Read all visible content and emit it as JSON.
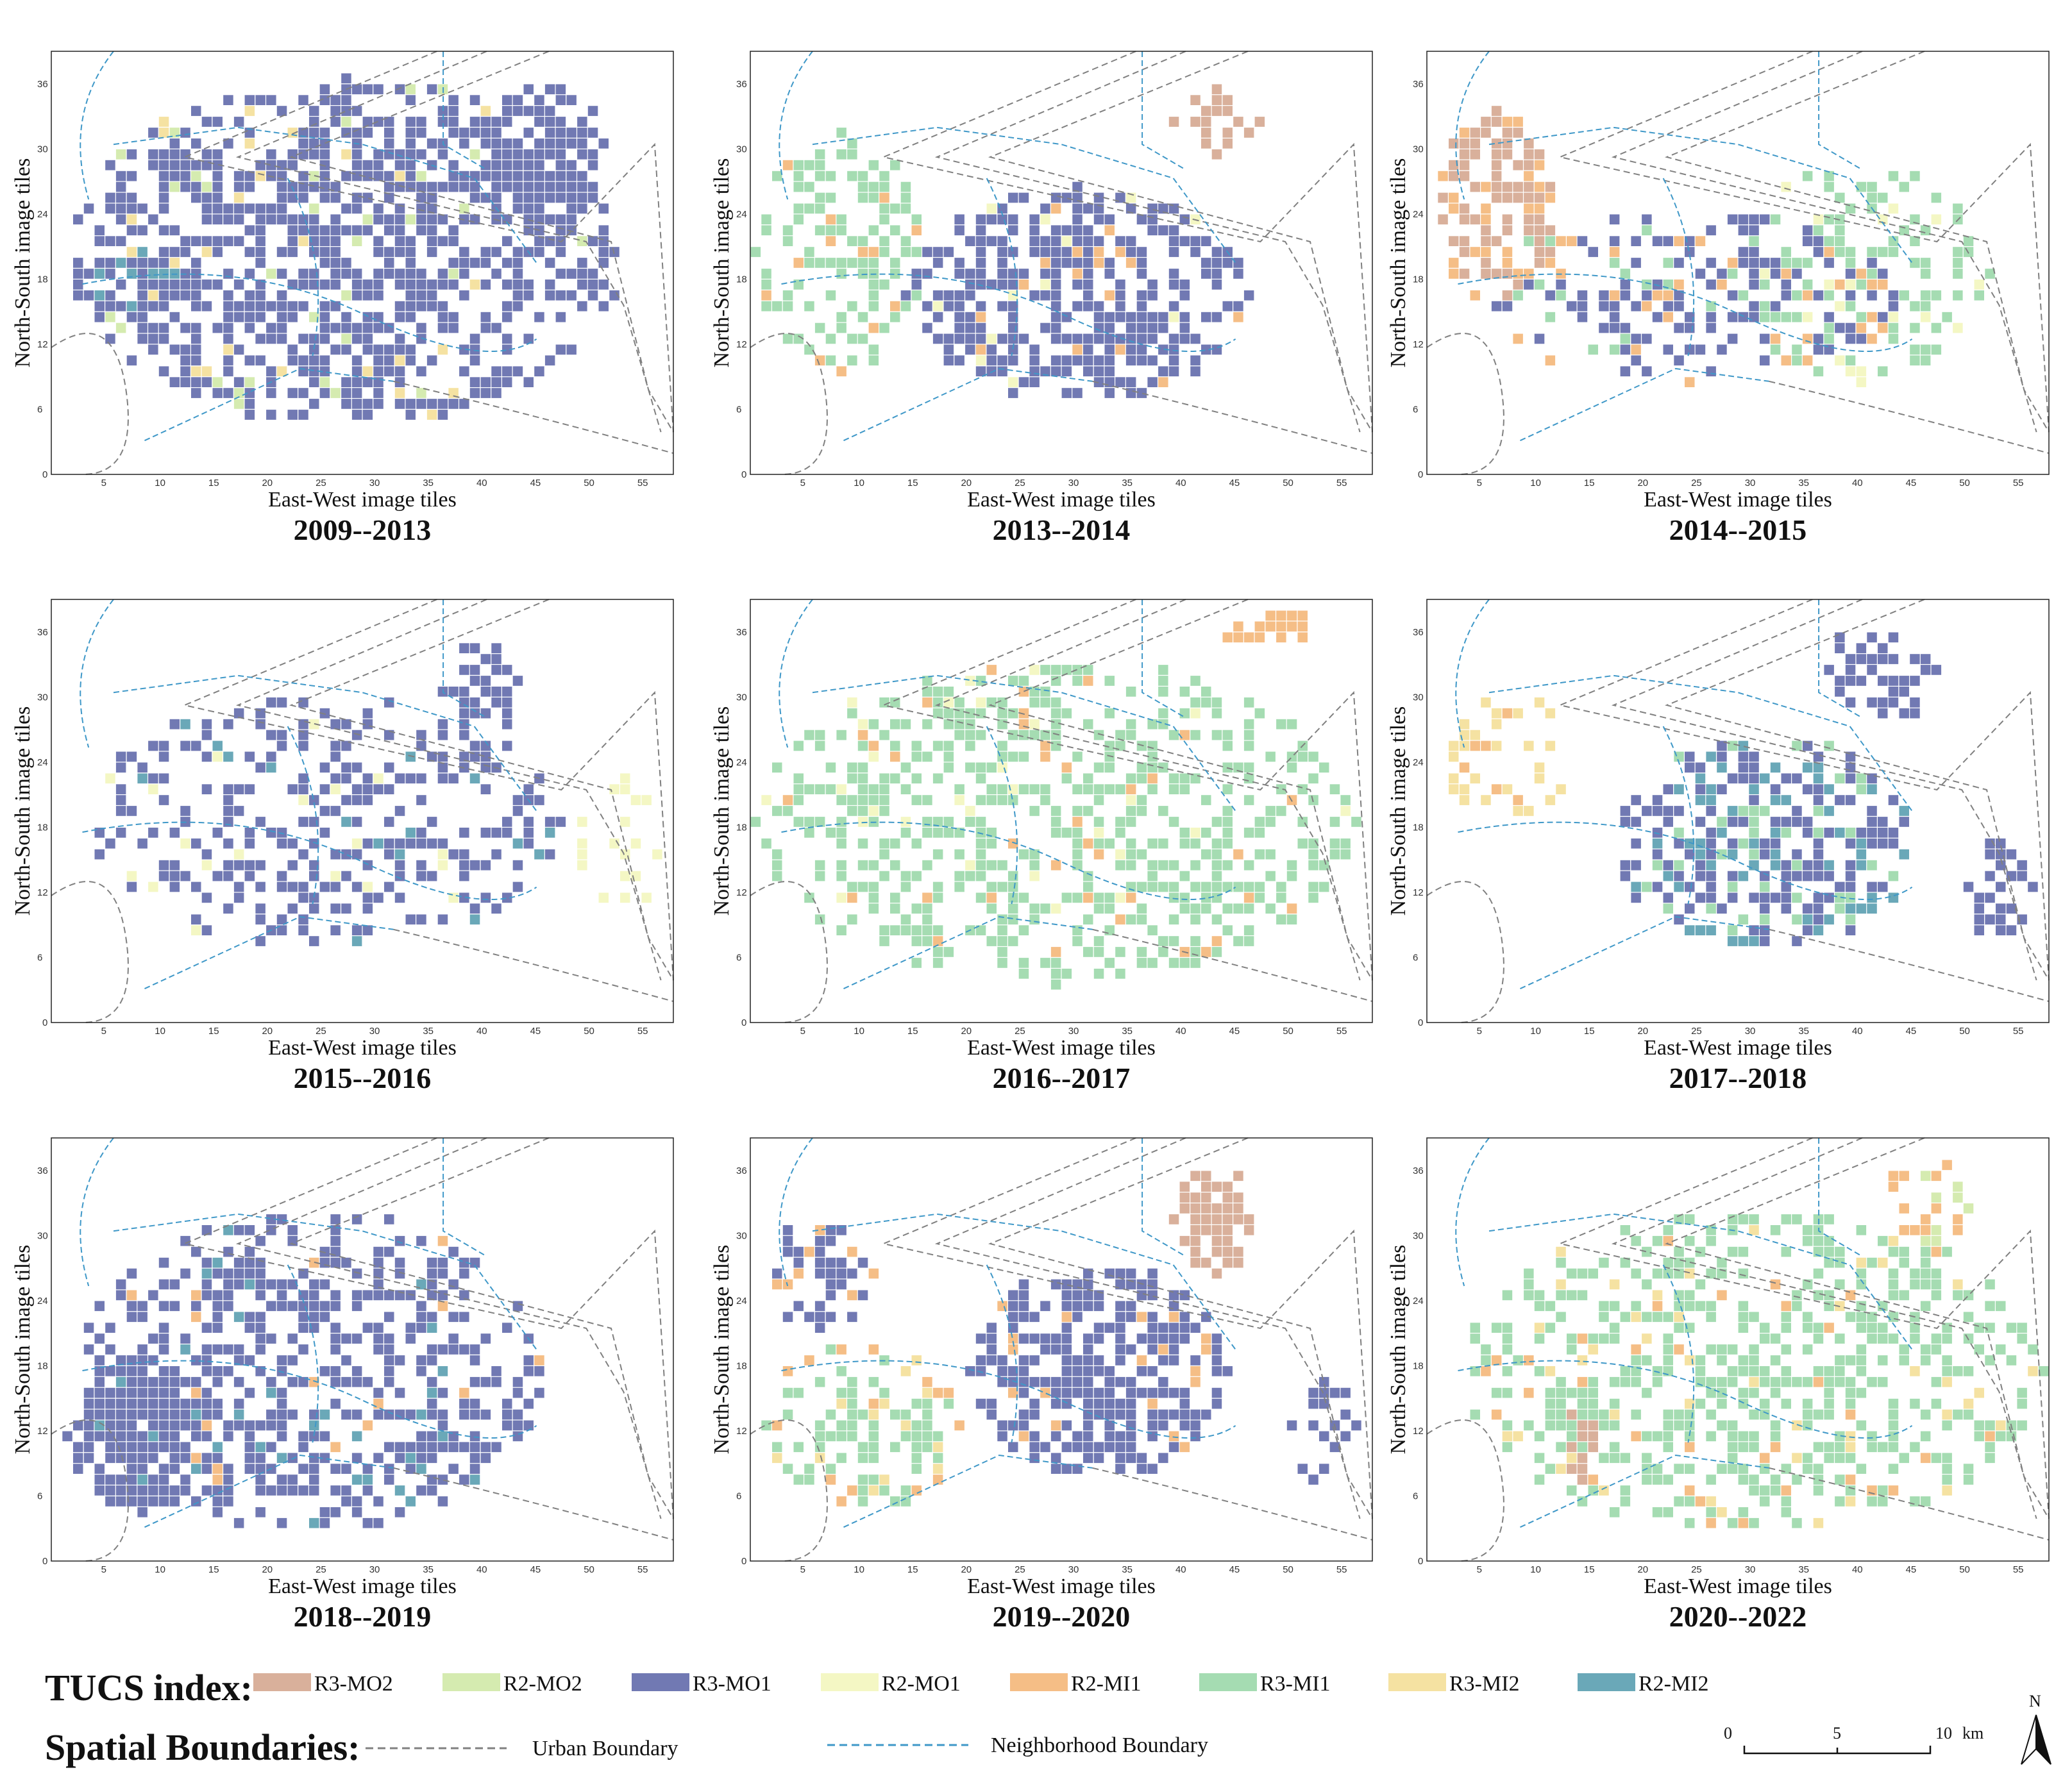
{
  "figure": {
    "xlabel": "East-West image tiles",
    "ylabel": "North-South image tiles",
    "x_ticks": [
      "5",
      "10",
      "15",
      "20",
      "25",
      "30",
      "35",
      "40",
      "45",
      "50",
      "55"
    ],
    "y_ticks": [
      "6",
      "12",
      "18",
      "24",
      "30",
      "36"
    ],
    "origin_label": "0"
  },
  "chart_data": [
    {
      "type": "heatmap",
      "title": "2009--2013",
      "xlabel": "East-West image tiles",
      "ylabel": "North-South image tiles",
      "xlim": [
        0,
        58
      ],
      "ylim": [
        0,
        39
      ],
      "dominant_classes": [
        "R3-MO1",
        "R2-MI2",
        "R3-MI2",
        "R2-MO2"
      ]
    },
    {
      "type": "heatmap",
      "title": "2013--2014",
      "xlabel": "East-West image tiles",
      "ylabel": "North-South image tiles",
      "xlim": [
        0,
        58
      ],
      "ylim": [
        0,
        39
      ],
      "dominant_classes": [
        "R3-MO1",
        "R3-MI1",
        "R3-MO2",
        "R2-MI1"
      ]
    },
    {
      "type": "heatmap",
      "title": "2014--2015",
      "xlabel": "East-West image tiles",
      "ylabel": "North-South image tiles",
      "xlim": [
        0,
        58
      ],
      "ylim": [
        0,
        39
      ],
      "dominant_classes": [
        "R3-MO2",
        "R3-MO1",
        "R3-MI1",
        "R2-MI1",
        "R2-MO1"
      ]
    },
    {
      "type": "heatmap",
      "title": "2015--2016",
      "xlabel": "East-West image tiles",
      "ylabel": "North-South image tiles",
      "xlim": [
        0,
        58
      ],
      "ylim": [
        0,
        39
      ],
      "dominant_classes": [
        "R3-MO1",
        "R2-MO1",
        "R2-MI2"
      ]
    },
    {
      "type": "heatmap",
      "title": "2016--2017",
      "xlabel": "East-West image tiles",
      "ylabel": "North-South image tiles",
      "xlim": [
        0,
        58
      ],
      "ylim": [
        0,
        39
      ],
      "dominant_classes": [
        "R3-MI1",
        "R2-MI1",
        "R2-MO1"
      ]
    },
    {
      "type": "heatmap",
      "title": "2017--2018",
      "xlabel": "East-West image tiles",
      "ylabel": "North-South image tiles",
      "xlim": [
        0,
        58
      ],
      "ylim": [
        0,
        39
      ],
      "dominant_classes": [
        "R3-MO1",
        "R2-MI2",
        "R3-MI2",
        "R3-MI1"
      ]
    },
    {
      "type": "heatmap",
      "title": "2018--2019",
      "xlabel": "East-West image tiles",
      "ylabel": "North-South image tiles",
      "xlim": [
        0,
        58
      ],
      "ylim": [
        0,
        39
      ],
      "dominant_classes": [
        "R3-MO1",
        "R2-MI2",
        "R2-MI1"
      ]
    },
    {
      "type": "heatmap",
      "title": "2019--2020",
      "xlabel": "East-West image tiles",
      "ylabel": "North-South image tiles",
      "xlim": [
        0,
        58
      ],
      "ylim": [
        0,
        39
      ],
      "dominant_classes": [
        "R3-MO1",
        "R3-MI1",
        "R3-MO2",
        "R2-MI1",
        "R3-MI2"
      ]
    },
    {
      "type": "heatmap",
      "title": "2020--2022",
      "xlabel": "East-West image tiles",
      "ylabel": "North-South image tiles",
      "xlim": [
        0,
        58
      ],
      "ylim": [
        0,
        39
      ],
      "dominant_classes": [
        "R3-MI1",
        "R2-MI1",
        "R3-MO2",
        "R2-MO2"
      ]
    }
  ],
  "legend": {
    "tucs_title": "TUCS index:",
    "tucs_items": [
      {
        "label": "R3-MO2",
        "color": "#d9b09b"
      },
      {
        "label": "R2-MO2",
        "color": "#d5ebb0"
      },
      {
        "label": "R3-MO1",
        "color": "#7179b3"
      },
      {
        "label": "R2-MO1",
        "color": "#f4f7c4"
      },
      {
        "label": "R2-MI1",
        "color": "#f5be86"
      },
      {
        "label": "R3-MI1",
        "color": "#a5dcb2"
      },
      {
        "label": "R3-MI2",
        "color": "#f5e2a2"
      },
      {
        "label": "R2-MI2",
        "color": "#6aa8b8"
      }
    ],
    "boundaries_title": "Spatial Boundaries:",
    "urban_boundary": "Urban Boundary",
    "neighborhood_boundary": "Neighborhood Boundary",
    "urban_color": "#808080",
    "neighborhood_color": "#3f98c8"
  },
  "scale_bar": {
    "labels": [
      "0",
      "5",
      "10"
    ],
    "unit": "km"
  },
  "north_arrow": "N"
}
